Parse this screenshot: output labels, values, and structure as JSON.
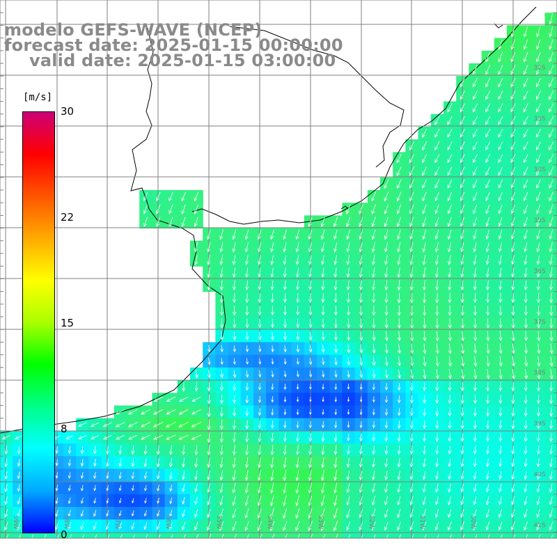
{
  "header": {
    "line1": "modelo GEFS-WAVE (NCEP)",
    "line2": "forecast date: 2025-01-15 00:00:00",
    "line3": "valid date: 2025-01-15 03:00:00"
  },
  "colorbar": {
    "units": "[m/s]",
    "ticks": [
      "30",
      "22",
      "15",
      "8",
      "0"
    ],
    "stops": [
      "#0000ff",
      "#00aaff",
      "#00ffff",
      "#00ff88",
      "#00ff00",
      "#aaff00",
      "#ffff00",
      "#ffaa00",
      "#ff5500",
      "#ff0000",
      "#cc0077"
    ]
  },
  "map": {
    "lat_labels": [
      "32S",
      "33S",
      "34S",
      "35S",
      "36S",
      "37S",
      "38S",
      "39S",
      "40S",
      "41S"
    ],
    "lon_labels": [
      "59W",
      "58W",
      "57W",
      "56W",
      "55W",
      "54W",
      "53W",
      "52W",
      "51W",
      "50W"
    ],
    "land_color": "#ffffff",
    "grid_color": "#7f7f7f",
    "arrow_color": "#ffffff"
  }
}
